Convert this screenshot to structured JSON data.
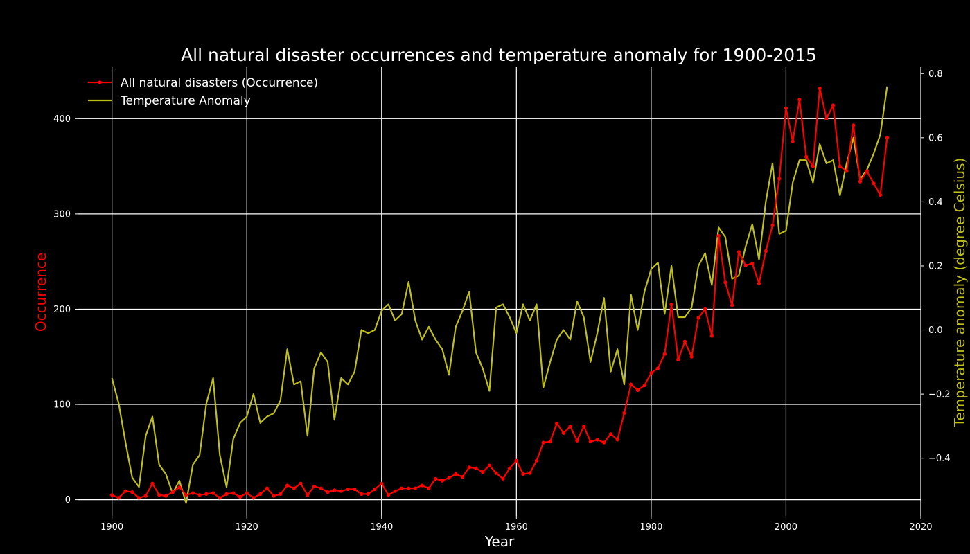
{
  "chart_data": {
    "type": "line",
    "title": "All natural disaster occurrences and temperature anomaly for 1900-2015",
    "xlabel": "Year",
    "ylabel": "Occurrence",
    "y2label": "Temperature anomaly (degree Celsius)",
    "xlim": [
      1895,
      2020
    ],
    "ylim": [
      -17,
      454
    ],
    "y2lim": [
      -0.58,
      0.82
    ],
    "x_ticks": [
      "1900",
      "1920",
      "1940",
      "1960",
      "1980",
      "2000",
      "2020"
    ],
    "y_ticks": [
      "0",
      "100",
      "200",
      "300",
      "400"
    ],
    "y2_ticks": [
      "−0.4",
      "−0.2",
      "0.0",
      "0.2",
      "0.4",
      "0.6",
      "0.8"
    ],
    "grid": true,
    "legend": "top-left",
    "colors": {
      "background": "#000000",
      "occurrence": "#ff0000",
      "temperature": "#bfbf1a",
      "grid": "#ffffff",
      "text": "#ffffff"
    },
    "x": [
      1900,
      1901,
      1902,
      1903,
      1904,
      1905,
      1906,
      1907,
      1908,
      1909,
      1910,
      1911,
      1912,
      1913,
      1914,
      1915,
      1916,
      1917,
      1918,
      1919,
      1920,
      1921,
      1922,
      1923,
      1924,
      1925,
      1926,
      1927,
      1928,
      1929,
      1930,
      1931,
      1932,
      1933,
      1934,
      1935,
      1936,
      1937,
      1938,
      1939,
      1940,
      1941,
      1942,
      1943,
      1944,
      1945,
      1946,
      1947,
      1948,
      1949,
      1950,
      1951,
      1952,
      1953,
      1954,
      1955,
      1956,
      1957,
      1958,
      1959,
      1960,
      1961,
      1962,
      1963,
      1964,
      1965,
      1966,
      1967,
      1968,
      1969,
      1970,
      1971,
      1972,
      1973,
      1974,
      1975,
      1976,
      1977,
      1978,
      1979,
      1980,
      1981,
      1982,
      1983,
      1984,
      1985,
      1986,
      1987,
      1988,
      1989,
      1990,
      1991,
      1992,
      1993,
      1994,
      1995,
      1996,
      1997,
      1998,
      1999,
      2000,
      2001,
      2002,
      2003,
      2004,
      2005,
      2006,
      2007,
      2008,
      2009,
      2010,
      2011,
      2012,
      2013,
      2014,
      2015
    ],
    "series": [
      {
        "name": "All natural disasters (Occurrence)",
        "axis": "left",
        "values": [
          5,
          2,
          9,
          8,
          2,
          4,
          17,
          5,
          4,
          8,
          13,
          5,
          7,
          5,
          6,
          7,
          2,
          6,
          7,
          3,
          7,
          2,
          6,
          12,
          4,
          6,
          15,
          12,
          17,
          5,
          14,
          12,
          8,
          10,
          9,
          11,
          11,
          6,
          6,
          11,
          17,
          5,
          9,
          12,
          12,
          12,
          15,
          12,
          22,
          20,
          23,
          27,
          24,
          34,
          33,
          29,
          36,
          28,
          22,
          33,
          41,
          27,
          28,
          41,
          60,
          61,
          80,
          70,
          77,
          62,
          77,
          61,
          63,
          60,
          69,
          63,
          91,
          121,
          115,
          120,
          133,
          138,
          153,
          205,
          147,
          166,
          150,
          191,
          200,
          172,
          277,
          228,
          204,
          260,
          246,
          248,
          227,
          261,
          288,
          337,
          411,
          376,
          420,
          360,
          350,
          432,
          400,
          414,
          350,
          345,
          393,
          334,
          345,
          332,
          320,
          380
        ]
      },
      {
        "name": "Temperature Anomaly",
        "axis": "right",
        "values": [
          -0.15,
          -0.23,
          -0.35,
          -0.46,
          -0.49,
          -0.33,
          -0.27,
          -0.42,
          -0.45,
          -0.51,
          -0.47,
          -0.54,
          -0.42,
          -0.39,
          -0.23,
          -0.15,
          -0.39,
          -0.49,
          -0.34,
          -0.29,
          -0.27,
          -0.2,
          -0.29,
          -0.27,
          -0.26,
          -0.22,
          -0.06,
          -0.17,
          -0.16,
          -0.33,
          -0.12,
          -0.07,
          -0.1,
          -0.28,
          -0.15,
          -0.17,
          -0.13,
          0.0,
          -0.01,
          0.0,
          0.06,
          0.08,
          0.03,
          0.05,
          0.15,
          0.03,
          -0.03,
          0.01,
          -0.03,
          -0.06,
          -0.14,
          0.01,
          0.06,
          0.12,
          -0.07,
          -0.12,
          -0.19,
          0.07,
          0.08,
          0.04,
          -0.01,
          0.08,
          0.03,
          0.08,
          -0.18,
          -0.1,
          -0.03,
          0.0,
          -0.03,
          0.09,
          0.04,
          -0.1,
          -0.01,
          0.1,
          -0.13,
          -0.06,
          -0.17,
          0.11,
          0.0,
          0.12,
          0.19,
          0.21,
          0.05,
          0.2,
          0.04,
          0.04,
          0.07,
          0.2,
          0.24,
          0.14,
          0.32,
          0.29,
          0.16,
          0.17,
          0.26,
          0.33,
          0.22,
          0.4,
          0.52,
          0.3,
          0.31,
          0.46,
          0.53,
          0.53,
          0.46,
          0.58,
          0.52,
          0.53,
          0.42,
          0.52,
          0.6,
          0.47,
          0.5,
          0.55,
          0.61,
          0.76
        ]
      }
    ]
  }
}
